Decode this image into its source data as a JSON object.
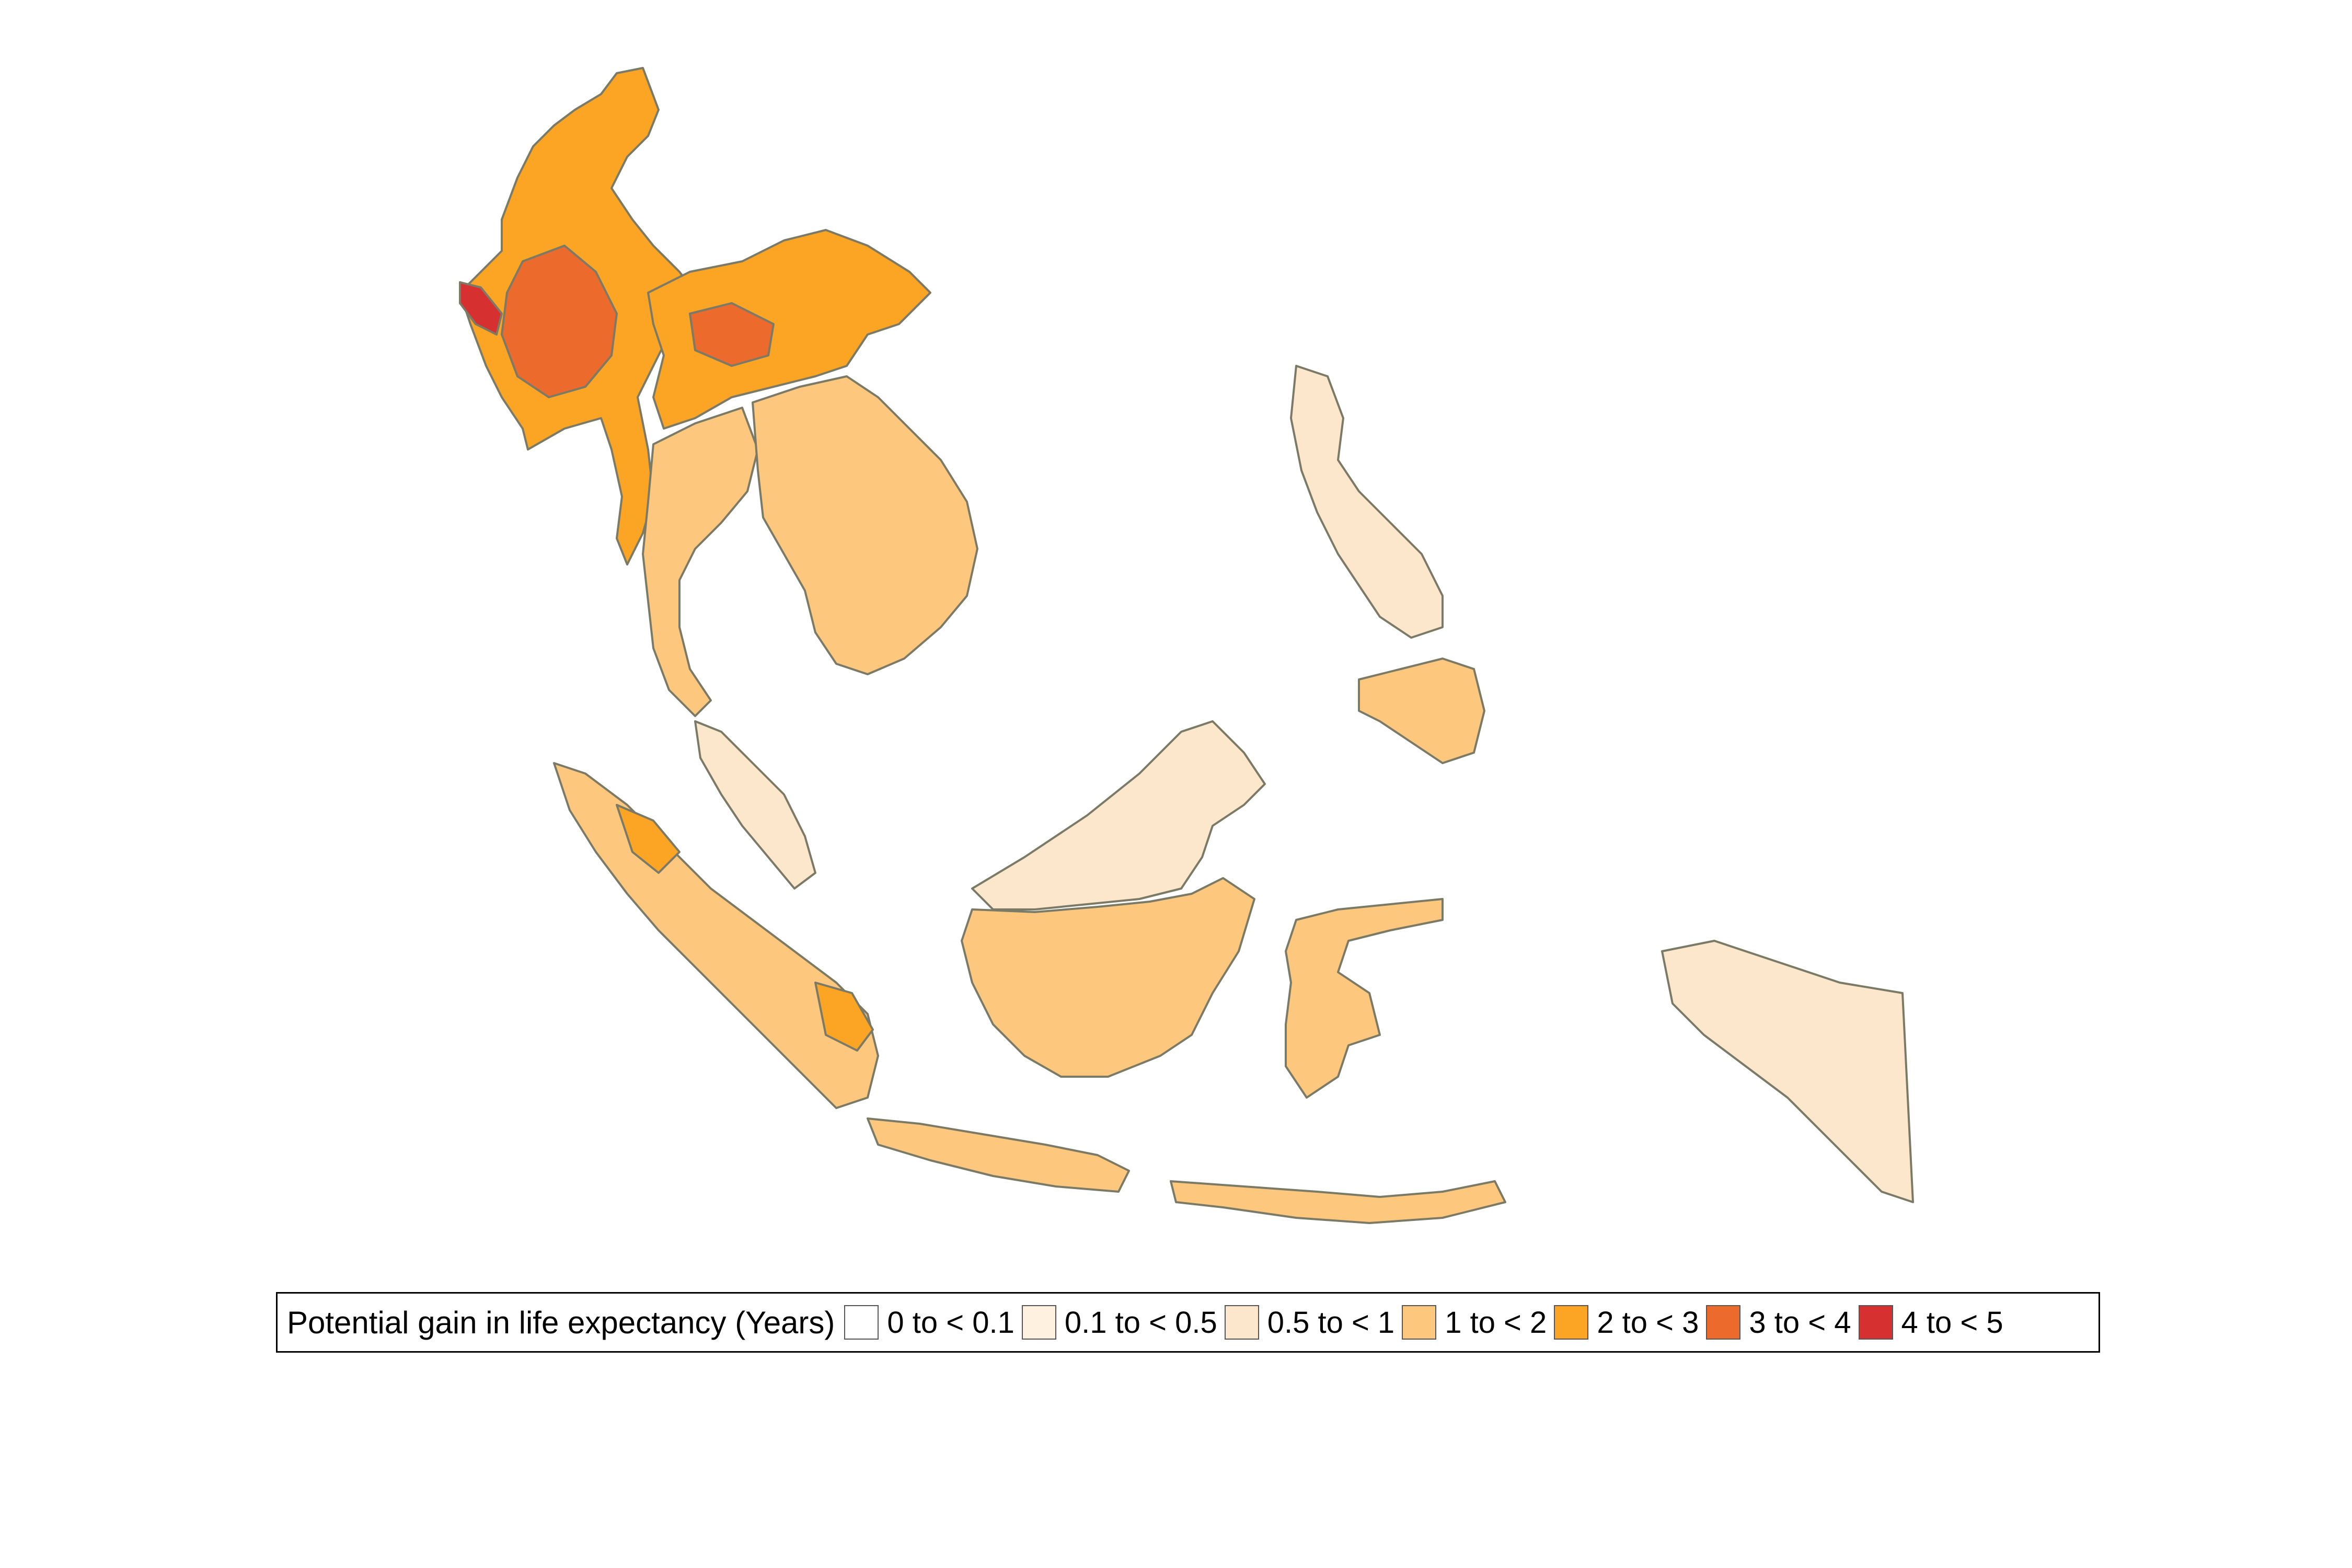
{
  "legend": {
    "title": "Potential gain in life expectancy (Years)",
    "classes": [
      {
        "label": "0 to < 0.1",
        "color": "#ffffff"
      },
      {
        "label": "0.1 to < 0.5",
        "color": "#fff1e0"
      },
      {
        "label": "0.5 to < 1",
        "color": "#fde7cc"
      },
      {
        "label": "1 to < 2",
        "color": "#fdc77e"
      },
      {
        "label": "2 to < 3",
        "color": "#fca424"
      },
      {
        "label": "3 to < 4",
        "color": "#ec6a2c"
      },
      {
        "label": "4 to < 5",
        "color": "#d73030"
      }
    ]
  },
  "map": {
    "region": "Southeast Asia",
    "regions": [
      {
        "id": "myanmar",
        "class": 4
      },
      {
        "id": "myanmar-central",
        "class": 5
      },
      {
        "id": "myanmar-coast",
        "class": 6
      },
      {
        "id": "laos-vietnam-north",
        "class": 4
      },
      {
        "id": "vietnam-north-hotspot",
        "class": 5
      },
      {
        "id": "thailand",
        "class": 3
      },
      {
        "id": "cambodia-vietnam-south",
        "class": 3
      },
      {
        "id": "peninsular-malaysia",
        "class": 2
      },
      {
        "id": "sumatra",
        "class": 3
      },
      {
        "id": "aceh",
        "class": 4
      },
      {
        "id": "jambi",
        "class": 4
      },
      {
        "id": "borneo-north",
        "class": 2
      },
      {
        "id": "kalimantan",
        "class": 3
      },
      {
        "id": "java",
        "class": 3
      },
      {
        "id": "philippines",
        "class": 2
      },
      {
        "id": "mindanao",
        "class": 3
      },
      {
        "id": "sulawesi",
        "class": 3
      },
      {
        "id": "papua",
        "class": 2
      }
    ]
  }
}
